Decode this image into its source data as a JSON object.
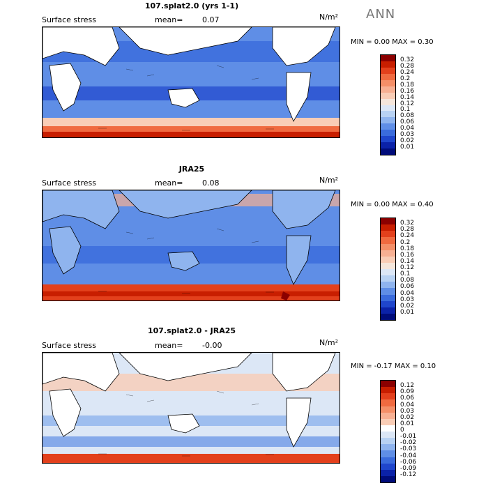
{
  "season": "ANN",
  "units": "N/m²",
  "panels": [
    {
      "title": "107.splat2.0 (yrs 1-1)",
      "variable": "Surface stress",
      "mean_label": "mean=",
      "mean_value": "0.07",
      "minmax": "MIN =    0.00 MAX =    0.30",
      "levels": [
        "0.32",
        "0.28",
        "0.24",
        "0.2",
        "0.18",
        "0.16",
        "0.14",
        "0.12",
        "0.1",
        "0.08",
        "0.06",
        "0.04",
        "0.03",
        "0.02",
        "0.01"
      ],
      "colors": [
        "#8b0000",
        "#c81e00",
        "#e3401c",
        "#f06a40",
        "#f48f68",
        "#f7b093",
        "#f9cdb6",
        "#f5e6db",
        "#dce7f6",
        "#b8d2f3",
        "#8fb4ee",
        "#5f8ee6",
        "#3a6bdc",
        "#1f46cc",
        "#0b22a8",
        "#000c7a"
      ]
    },
    {
      "title": "JRA25",
      "variable": "Surface stress",
      "mean_label": "mean=",
      "mean_value": "0.08",
      "minmax": "MIN =    0.00 MAX =    0.40",
      "levels": [
        "0.32",
        "0.28",
        "0.24",
        "0.2",
        "0.18",
        "0.16",
        "0.14",
        "0.12",
        "0.1",
        "0.08",
        "0.06",
        "0.04",
        "0.03",
        "0.02",
        "0.01"
      ],
      "colors": [
        "#8b0000",
        "#c81e00",
        "#e3401c",
        "#f06a40",
        "#f48f68",
        "#f7b093",
        "#f9cdb6",
        "#f5e6db",
        "#dce7f6",
        "#b8d2f3",
        "#8fb4ee",
        "#5f8ee6",
        "#3a6bdc",
        "#1f46cc",
        "#0b22a8",
        "#000c7a"
      ]
    },
    {
      "title": "107.splat2.0 - JRA25",
      "variable": "Surface stress",
      "mean_label": "mean=",
      "mean_value": "-0.00",
      "minmax": "MIN =   -0.17 MAX =    0.10",
      "levels": [
        "0.12",
        "0.09",
        "0.06",
        "0.04",
        "0.03",
        "0.02",
        "0.01",
        "0",
        "-0.01",
        "-0.02",
        "-0.03",
        "-0.04",
        "-0.06",
        "-0.09",
        "-0.12"
      ],
      "colors": [
        "#8b0000",
        "#c81e00",
        "#e3401c",
        "#f06a40",
        "#f48f68",
        "#f7b093",
        "#f9cdb6",
        "#ffffff",
        "#dce7f6",
        "#b8d2f3",
        "#8fb4ee",
        "#5f8ee6",
        "#3a6bdc",
        "#1f46cc",
        "#0b22a8",
        "#000c7a"
      ]
    }
  ]
}
